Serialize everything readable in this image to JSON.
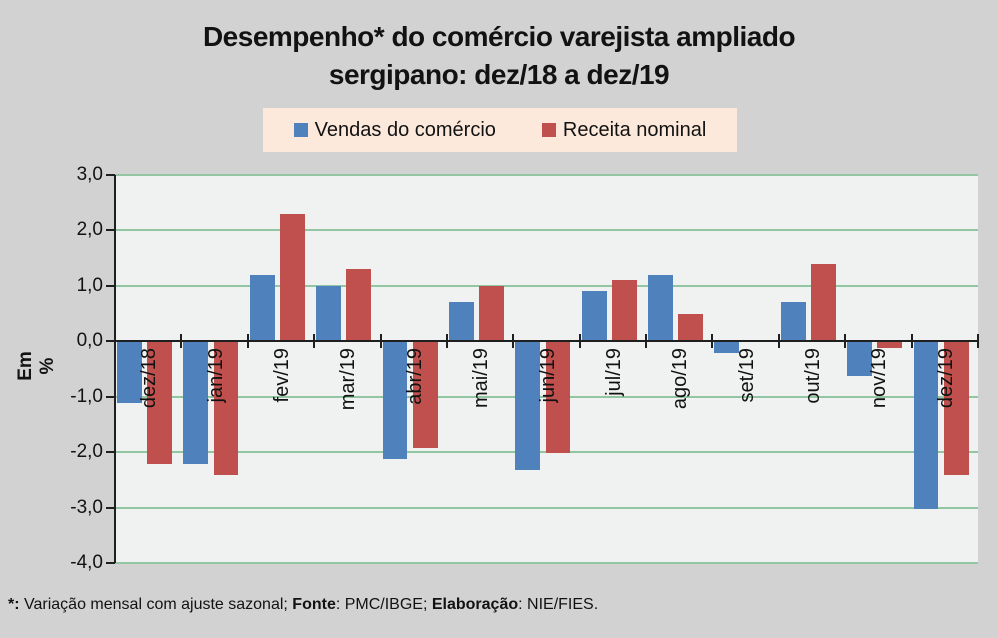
{
  "title": {
    "line1": "Desempenho* do comércio varejista ampliado",
    "line2": "sergipano: dez/18 a dez/19"
  },
  "legend": {
    "items": [
      {
        "label": "Vendas do comércio",
        "color": "#4f81bd"
      },
      {
        "label": "Receita nominal",
        "color": "#c0504d"
      }
    ],
    "background": "#fce9db",
    "position": "top"
  },
  "chart_data": {
    "type": "bar",
    "categories": [
      "dez/18",
      "jan/19",
      "fev/19",
      "mar/19",
      "abr/19",
      "mai/19",
      "jun/19",
      "jul/19",
      "ago/19",
      "set/19",
      "out/19",
      "nov/19",
      "dez/19"
    ],
    "series": [
      {
        "name": "Vendas do comércio",
        "color": "#4f81bd",
        "values": [
          -1.1,
          -2.2,
          1.2,
          1.0,
          -2.1,
          0.7,
          -2.3,
          0.9,
          1.2,
          -0.2,
          0.7,
          -0.6,
          -3.0
        ]
      },
      {
        "name": "Receita nominal",
        "color": "#c0504d",
        "values": [
          -2.2,
          -2.4,
          2.3,
          1.3,
          -1.9,
          1.0,
          -2.0,
          1.1,
          0.5,
          0.0,
          1.4,
          -0.1,
          -2.4
        ]
      }
    ],
    "xlabel": "",
    "ylabel": "Em %",
    "ylim": [
      -4.0,
      3.0
    ],
    "ytick_step": 1.0,
    "ytick_labels": [
      "3,0",
      "2,0",
      "1,0",
      "0,0",
      "-1,0",
      "-2,0",
      "-3,0",
      "-4,0"
    ],
    "decimal_separator": ",",
    "grid": true,
    "gridline_color": "#92c6a2",
    "plot_background": "#f0f1f1",
    "axis_color": "#1f1f1f",
    "legend_position": "top"
  },
  "footnote": {
    "segments": [
      {
        "text": "*:",
        "bold": true
      },
      {
        "text": " Variação mensal com ajuste sazonal; ",
        "bold": false
      },
      {
        "text": "Fonte",
        "bold": true
      },
      {
        "text": ": PMC/IBGE; ",
        "bold": false
      },
      {
        "text": "Elaboração",
        "bold": true
      },
      {
        "text": ": NIE/FIES.",
        "bold": false
      }
    ]
  },
  "colors": {
    "page_background": "#d2d2d2",
    "plot_background": "#f0f1f1",
    "gridline": "#92c6a2",
    "axis": "#1f1f1f",
    "series_blue": "#4f81bd",
    "series_red": "#c0504d",
    "legend_background": "#fce9db"
  }
}
